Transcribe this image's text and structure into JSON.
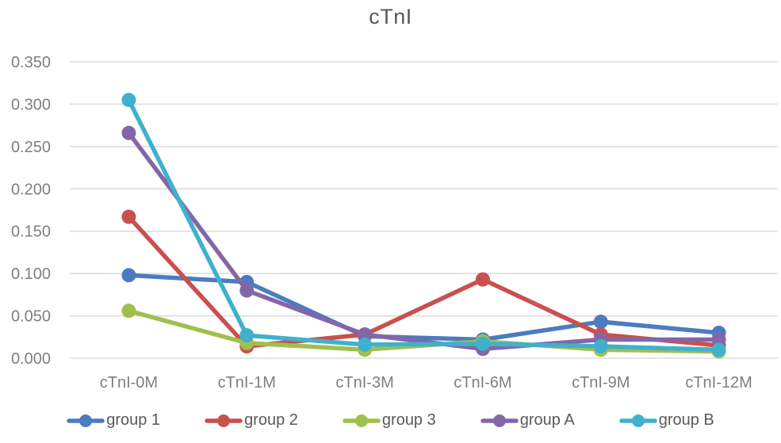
{
  "chart_data": {
    "type": "line",
    "title": "cTnI",
    "xlabel": "",
    "ylabel": "",
    "categories": [
      "cTnI-0M",
      "cTnI-1M",
      "cTnI-3M",
      "cTnI-6M",
      "cTnI-9M",
      "cTnI-12M"
    ],
    "series": [
      {
        "name": "group 1",
        "color": "#4C7CBF",
        "values": [
          0.098,
          0.09,
          0.026,
          0.022,
          0.043,
          0.03
        ]
      },
      {
        "name": "group 2",
        "color": "#C8504E",
        "values": [
          0.167,
          0.014,
          0.028,
          0.093,
          0.028,
          0.015
        ]
      },
      {
        "name": "group 3",
        "color": "#A0C04E",
        "values": [
          0.056,
          0.018,
          0.01,
          0.02,
          0.01,
          0.008
        ]
      },
      {
        "name": "group A",
        "color": "#8466A8",
        "values": [
          0.266,
          0.08,
          0.028,
          0.011,
          0.022,
          0.022
        ]
      },
      {
        "name": "group B",
        "color": "#3FB1CC",
        "values": [
          0.305,
          0.027,
          0.016,
          0.017,
          0.014,
          0.01
        ]
      }
    ],
    "ylim": [
      0.0,
      0.35
    ],
    "y_tick_step": 0.05,
    "y_tick_decimals": 3,
    "y_tick_labels": [
      "0.000",
      "0.050",
      "0.100",
      "0.150",
      "0.200",
      "0.250",
      "0.300",
      "0.350"
    ],
    "grid": true,
    "legend_position": "bottom",
    "marker": "circle"
  },
  "styles": {
    "background": "#FFFFFF",
    "title_color": "#595959",
    "axis_tick_color": "#7F7F7F",
    "gridline_color": "#DBDBDB",
    "legend_text_color": "#595959"
  }
}
